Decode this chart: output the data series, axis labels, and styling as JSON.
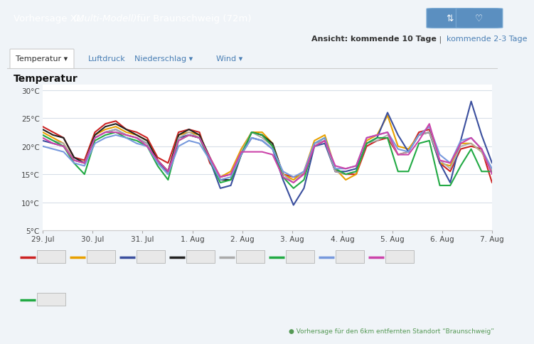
{
  "title_bar_bg": "#4a7fb5",
  "bg_color": "#f0f4f8",
  "plot_bg": "#ffffff",
  "grid_color": "#d8dfe8",
  "yticks": [
    5,
    10,
    15,
    20,
    25,
    30
  ],
  "ytick_labels": [
    "5°C",
    "10°C",
    "15°C",
    "20°C",
    "25°C",
    "30°C"
  ],
  "xlabels": [
    "29. Jul",
    "30. Jul",
    "31. Jul",
    "1. Aug",
    "2. Aug",
    "3. Aug",
    "4. Aug",
    "5. Aug",
    "6. Aug",
    "7. Aug"
  ],
  "series": [
    {
      "color": "#cc2222",
      "lw": 1.5,
      "data": [
        23.5,
        22.5,
        21.5,
        18.0,
        17.5,
        22.5,
        24.0,
        24.5,
        23.0,
        22.5,
        21.5,
        18.0,
        17.0,
        22.5,
        23.0,
        22.5,
        17.0,
        14.5,
        15.0,
        18.5,
        22.5,
        22.0,
        20.0,
        15.0,
        14.5,
        15.0,
        20.0,
        21.0,
        15.5,
        15.0,
        15.0,
        20.0,
        21.0,
        21.5,
        18.5,
        19.0,
        22.5,
        23.0,
        17.0,
        15.5,
        19.5,
        20.0,
        19.5,
        13.5
      ]
    },
    {
      "color": "#e8a000",
      "lw": 1.5,
      "data": [
        22.5,
        21.5,
        20.5,
        17.5,
        17.0,
        22.0,
        23.0,
        23.5,
        22.5,
        22.0,
        21.0,
        17.5,
        15.5,
        22.0,
        22.5,
        22.0,
        18.0,
        14.5,
        15.5,
        19.5,
        22.5,
        22.5,
        20.5,
        15.0,
        14.0,
        15.5,
        21.0,
        22.0,
        16.0,
        14.0,
        15.0,
        21.0,
        22.0,
        25.5,
        20.0,
        19.5,
        22.0,
        22.5,
        17.0,
        16.5,
        20.5,
        20.5,
        19.0,
        15.5
      ]
    },
    {
      "color": "#3b4f9e",
      "lw": 1.5,
      "data": [
        21.0,
        20.5,
        20.0,
        17.5,
        17.0,
        21.5,
        22.5,
        23.0,
        22.0,
        21.5,
        20.5,
        17.5,
        15.0,
        21.5,
        22.0,
        21.5,
        17.5,
        12.5,
        13.0,
        18.5,
        21.5,
        21.0,
        19.5,
        14.0,
        9.5,
        12.5,
        20.0,
        20.5,
        15.5,
        15.5,
        16.0,
        20.5,
        21.5,
        26.0,
        22.0,
        19.0,
        22.0,
        22.5,
        17.0,
        13.5,
        21.0,
        28.0,
        22.0,
        17.0
      ]
    },
    {
      "color": "#222222",
      "lw": 1.5,
      "data": [
        23.0,
        22.0,
        21.5,
        18.0,
        17.0,
        22.0,
        23.5,
        24.0,
        23.0,
        22.0,
        21.0,
        17.5,
        15.5,
        22.0,
        23.0,
        22.0,
        18.0,
        14.0,
        14.0,
        18.5,
        22.5,
        22.0,
        20.5,
        15.0,
        null,
        null,
        null,
        null,
        null,
        null,
        null,
        null,
        null,
        null,
        null,
        null,
        null,
        null,
        null,
        null,
        null,
        null,
        null,
        null
      ]
    },
    {
      "color": "#aaaaaa",
      "lw": 1.3,
      "data": [
        22.0,
        21.0,
        20.5,
        17.5,
        17.0,
        21.5,
        22.5,
        23.0,
        22.0,
        21.5,
        20.5,
        17.0,
        15.0,
        21.5,
        22.5,
        21.5,
        17.5,
        14.5,
        15.0,
        19.0,
        22.5,
        21.5,
        20.0,
        15.0,
        13.5,
        15.5,
        20.5,
        21.0,
        15.5,
        15.0,
        15.5,
        20.5,
        21.0,
        22.0,
        18.5,
        19.0,
        22.0,
        22.5,
        17.5,
        16.0,
        20.0,
        20.5,
        19.0,
        15.5
      ]
    },
    {
      "color": "#22aa44",
      "lw": 1.5,
      "data": [
        22.0,
        21.0,
        20.0,
        17.0,
        15.0,
        21.0,
        22.0,
        22.5,
        21.5,
        21.0,
        20.0,
        16.5,
        14.0,
        21.0,
        22.0,
        21.5,
        17.5,
        13.5,
        14.0,
        18.5,
        22.5,
        22.0,
        20.0,
        14.5,
        12.5,
        14.0,
        20.5,
        21.5,
        16.0,
        15.0,
        15.5,
        20.5,
        21.5,
        21.5,
        15.5,
        15.5,
        20.5,
        21.0,
        13.0,
        13.0,
        16.5,
        19.5,
        15.5,
        15.5
      ]
    },
    {
      "color": "#7799dd",
      "lw": 1.5,
      "data": [
        20.0,
        19.5,
        19.0,
        17.0,
        16.5,
        20.5,
        21.5,
        22.0,
        21.5,
        20.5,
        20.0,
        17.0,
        15.0,
        20.0,
        21.0,
        20.5,
        17.5,
        14.0,
        14.5,
        18.5,
        21.5,
        21.0,
        19.5,
        15.5,
        14.5,
        15.5,
        20.5,
        21.5,
        16.0,
        16.0,
        16.5,
        21.5,
        22.0,
        22.5,
        19.5,
        19.0,
        22.0,
        23.5,
        18.5,
        17.0,
        21.0,
        21.5,
        19.5,
        16.0
      ]
    },
    {
      "color": "#cc44aa",
      "lw": 1.5,
      "data": [
        21.5,
        20.5,
        20.0,
        17.5,
        17.0,
        21.5,
        22.5,
        22.5,
        22.0,
        21.5,
        20.0,
        17.5,
        15.5,
        21.0,
        22.0,
        21.5,
        18.0,
        14.5,
        15.0,
        19.0,
        19.0,
        19.0,
        18.5,
        14.5,
        13.5,
        15.0,
        20.0,
        21.0,
        16.5,
        16.0,
        16.5,
        21.5,
        22.0,
        22.5,
        18.5,
        18.5,
        21.0,
        24.0,
        17.5,
        17.0,
        20.5,
        21.5,
        19.5,
        15.0
      ]
    }
  ],
  "footer_note": "● Vorhersage für den 6km entfernten Standort “Braunschweig”",
  "footer_note_color": "#559955"
}
